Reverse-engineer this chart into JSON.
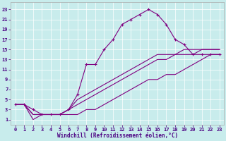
{
  "background_color": "#c8ecec",
  "line_color": "#800080",
  "xlabel": "Windchill (Refroidissement éolien,°C)",
  "xlim": [
    -0.5,
    23.5
  ],
  "ylim": [
    0,
    24.5
  ],
  "ytick_vals": [
    1,
    3,
    5,
    7,
    9,
    11,
    13,
    15,
    17,
    19,
    21,
    23
  ],
  "xtick_vals": [
    0,
    1,
    2,
    3,
    4,
    5,
    6,
    7,
    8,
    9,
    10,
    11,
    12,
    13,
    14,
    15,
    16,
    17,
    18,
    19,
    20,
    21,
    22,
    23
  ],
  "curve_x": [
    0,
    1,
    2,
    3,
    4,
    5,
    6,
    7,
    8,
    9,
    10,
    11,
    12,
    13,
    14,
    15,
    16,
    17,
    18,
    19,
    20,
    21,
    22,
    23
  ],
  "curve_y": [
    4,
    4,
    3,
    2,
    2,
    2,
    3,
    6,
    12,
    12,
    15,
    17,
    20,
    21,
    22,
    23,
    22,
    20,
    17,
    16,
    14,
    14,
    14,
    14
  ],
  "line2_x": [
    0,
    1,
    2,
    3,
    4,
    5,
    6,
    7,
    8,
    9,
    10,
    11,
    12,
    13,
    14,
    15,
    16,
    17,
    18,
    19,
    20,
    21,
    22,
    23
  ],
  "line2_y": [
    4,
    4,
    1,
    2,
    2,
    2,
    2,
    2,
    3,
    3,
    4,
    5,
    6,
    7,
    8,
    9,
    9,
    10,
    10,
    11,
    12,
    13,
    14,
    14
  ],
  "line3_x": [
    0,
    1,
    2,
    3,
    4,
    5,
    6,
    7,
    8,
    9,
    10,
    11,
    12,
    13,
    14,
    15,
    16,
    17,
    18,
    19,
    20,
    21,
    22,
    23
  ],
  "line3_y": [
    4,
    4,
    2,
    2,
    2,
    2,
    3,
    4,
    5,
    6,
    7,
    8,
    9,
    10,
    11,
    12,
    13,
    13,
    14,
    14,
    14,
    15,
    15,
    15
  ],
  "line4_x": [
    0,
    1,
    2,
    3,
    4,
    5,
    6,
    7,
    8,
    9,
    10,
    11,
    12,
    13,
    14,
    15,
    16,
    17,
    18,
    19,
    20,
    21,
    22,
    23
  ],
  "line4_y": [
    4,
    4,
    2,
    2,
    2,
    2,
    3,
    5,
    6,
    7,
    8,
    9,
    10,
    11,
    12,
    13,
    14,
    14,
    14,
    15,
    15,
    15,
    15,
    15
  ],
  "xlabel_fontsize": 5.5,
  "tick_fontsize": 5.0
}
